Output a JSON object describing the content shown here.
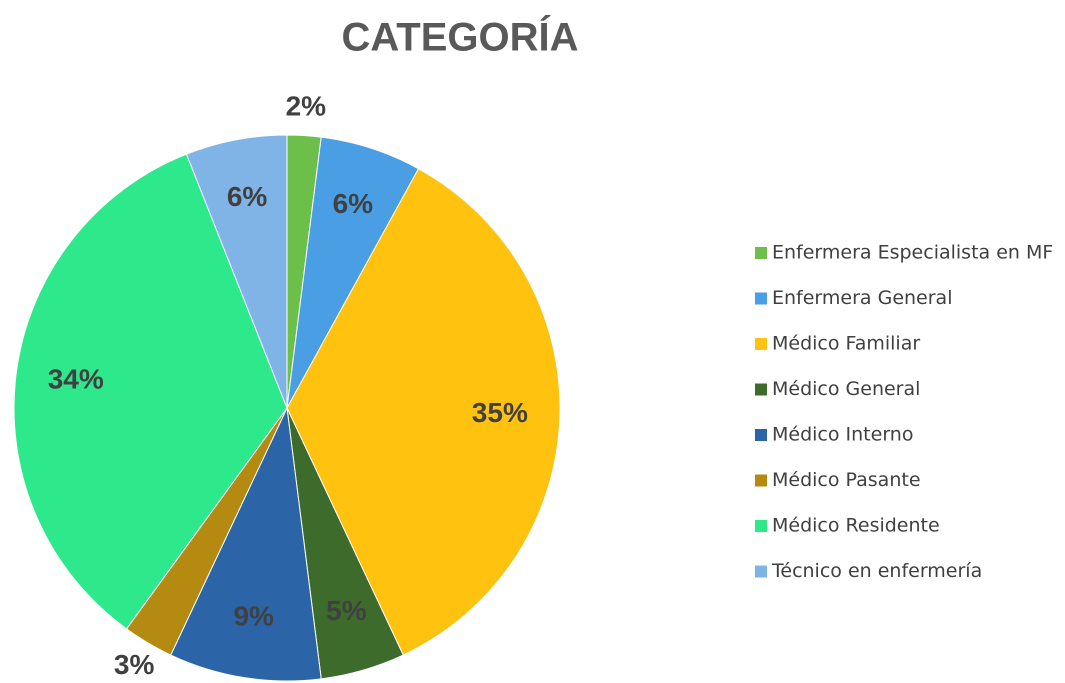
{
  "chart_data": {
    "type": "pie",
    "title": "CATEGORÍA",
    "categories": [
      "Enfermera Especialista en MF",
      "Enfermera General",
      "Médico Familiar",
      "Médico General",
      "Médico Interno",
      "Médico Pasante",
      "Médico Residente",
      "Técnico en enfermería"
    ],
    "values": [
      2,
      6,
      35,
      5,
      9,
      3,
      34,
      6
    ],
    "value_labels": [
      "2%",
      "6%",
      "35%",
      "5%",
      "9%",
      "3%",
      "34%",
      "6%"
    ],
    "colors": [
      "#6cc04a",
      "#4a9ee3",
      "#ffc20e",
      "#3d6b2c",
      "#2c64a8",
      "#b48a10",
      "#2ee88c",
      "#80b3e6"
    ],
    "legend": "right"
  }
}
